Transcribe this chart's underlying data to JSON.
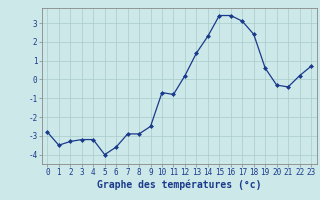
{
  "x": [
    0,
    1,
    2,
    3,
    4,
    5,
    6,
    7,
    8,
    9,
    10,
    11,
    12,
    13,
    14,
    15,
    16,
    17,
    18,
    19,
    20,
    21,
    22,
    23
  ],
  "y": [
    -2.8,
    -3.5,
    -3.3,
    -3.2,
    -3.2,
    -4.0,
    -3.6,
    -2.9,
    -2.9,
    -2.5,
    -0.7,
    -0.8,
    0.2,
    1.4,
    2.3,
    3.4,
    3.4,
    3.1,
    2.4,
    0.6,
    -0.3,
    -0.4,
    0.2,
    0.7
  ],
  "line_color": "#1a3a8c",
  "marker": "D",
  "marker_size": 2.0,
  "background_color": "#cce8e8",
  "grid_color": "#aacccc",
  "xlabel": "Graphe des températures (°c)",
  "xlabel_fontsize": 7.0,
  "ylim": [
    -4.5,
    3.8
  ],
  "yticks": [
    -4,
    -3,
    -2,
    -1,
    0,
    1,
    2,
    3
  ],
  "xticks": [
    0,
    1,
    2,
    3,
    4,
    5,
    6,
    7,
    8,
    9,
    10,
    11,
    12,
    13,
    14,
    15,
    16,
    17,
    18,
    19,
    20,
    21,
    22,
    23
  ],
  "tick_fontsize": 5.5,
  "tick_color": "#1a3a8c",
  "label_color": "#1a3a8c",
  "spine_color": "#888888",
  "linewidth": 0.9
}
